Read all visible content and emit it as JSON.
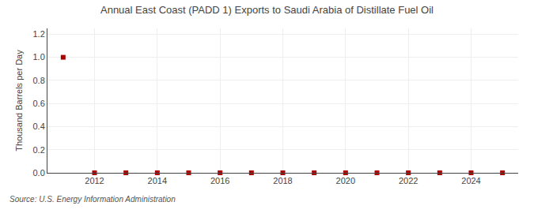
{
  "chart_data": {
    "type": "scatter",
    "title": "Annual East Coast (PADD 1) Exports to Saudi Arabia of Distillate Fuel Oil",
    "ylabel": "Thousand Barrels per Day",
    "annotations": [
      "Source: U.S. Energy Information Administration"
    ],
    "x": [
      2011,
      2012,
      2013,
      2014,
      2015,
      2016,
      2017,
      2018,
      2019,
      2020,
      2021,
      2022,
      2023,
      2024,
      2025
    ],
    "values": [
      1.0,
      0.0,
      0.0,
      0.0,
      0.0,
      0.0,
      0.0,
      0.0,
      0.0,
      0.0,
      0.0,
      0.0,
      0.0,
      0.0,
      0.0
    ],
    "color": "#aa0000",
    "marker": "square",
    "xlim": [
      2010.5,
      2025.5
    ],
    "xticks": [
      2012,
      2014,
      2016,
      2018,
      2020,
      2022,
      2024
    ],
    "ylim": [
      0.0,
      1.25
    ],
    "yticks": [
      {
        "value": 0,
        "label": "0.0"
      },
      0.2,
      0.4,
      0.6,
      0.8,
      {
        "value": 1,
        "label": "1.0"
      },
      1.2
    ],
    "grid": true
  }
}
